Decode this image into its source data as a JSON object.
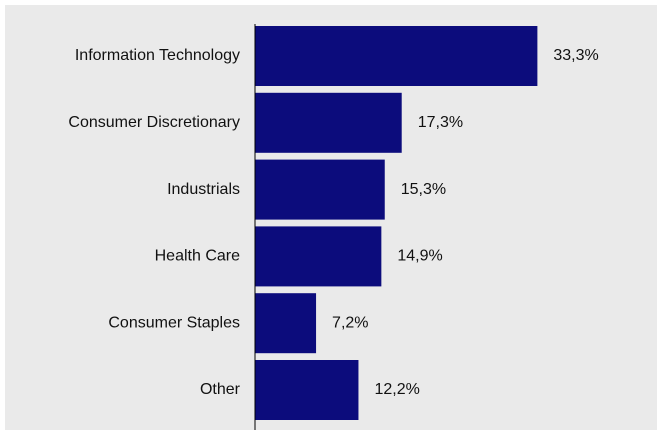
{
  "chart_data": {
    "type": "bar",
    "orientation": "horizontal",
    "title": "",
    "xlabel": "",
    "ylabel": "",
    "categories": [
      "Information Technology",
      "Consumer Discretionary",
      "Industrials",
      "Health Care",
      "Consumer Staples",
      "Other"
    ],
    "values": [
      33.3,
      17.3,
      15.3,
      14.9,
      7.2,
      12.2
    ],
    "value_labels": [
      "33,3%",
      "17,3%",
      "15,3%",
      "14,9%",
      "7,2%",
      "12,2%"
    ],
    "xlim": [
      0,
      45
    ],
    "grid": false,
    "legend": "none",
    "colors": {
      "bar": "#0c0c7c",
      "background": "#eaeaea",
      "axis": "#000000",
      "text": "#111111"
    }
  }
}
